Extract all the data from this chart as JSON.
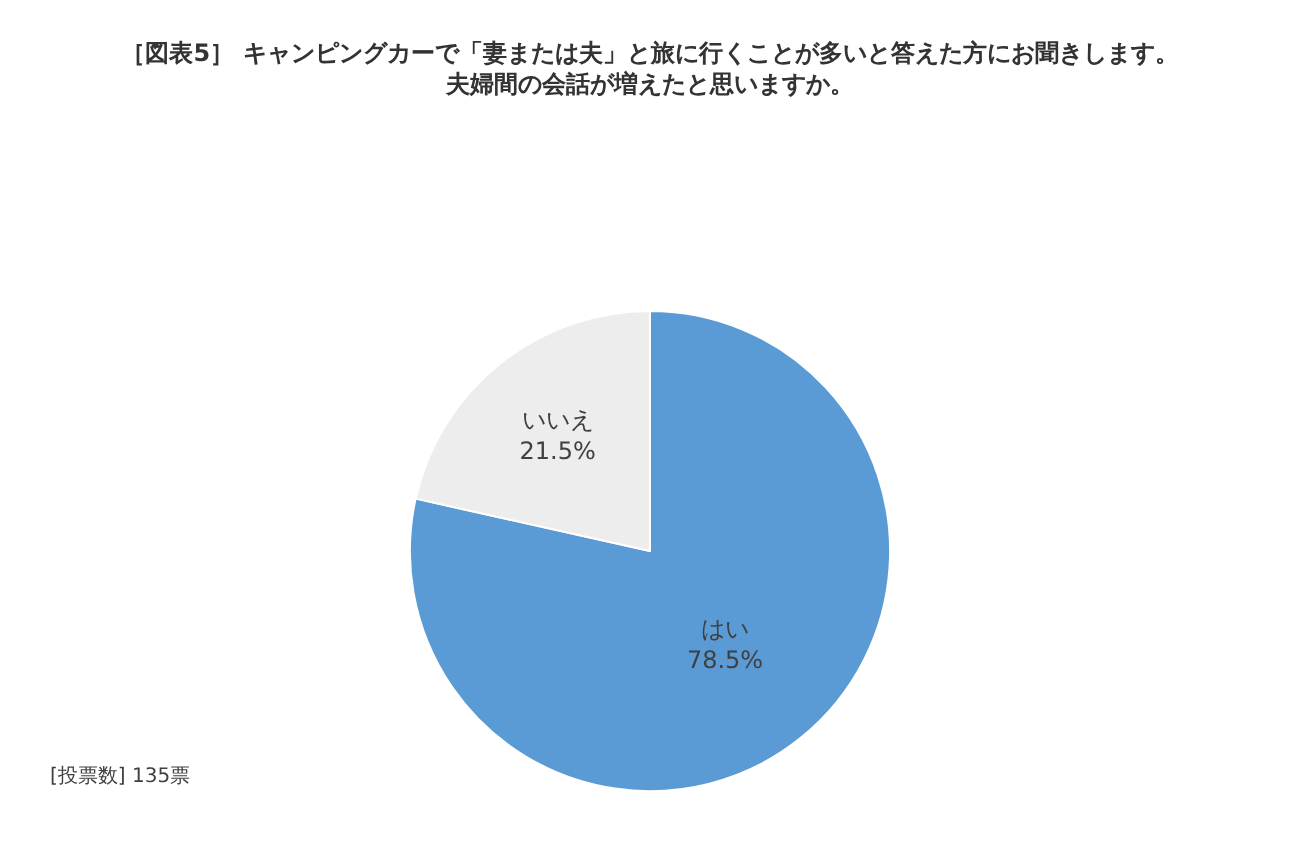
{
  "chart_data": {
    "type": "pie",
    "title": "［図表5］ キャンピングカーで「妻または夫」と旅に行くことが多いと答えた方にお聞きします。",
    "subtitle": "夫婦間の会話が増えたと思いますか。",
    "categories": [
      "はい",
      "いいえ"
    ],
    "values": [
      78.5,
      21.5
    ],
    "value_labels": [
      "78.5%",
      "21.5%"
    ],
    "colors": [
      "#5b9bd5",
      "#ededed"
    ],
    "annotations": [
      "[投票数] 135票"
    ],
    "legend": false
  }
}
